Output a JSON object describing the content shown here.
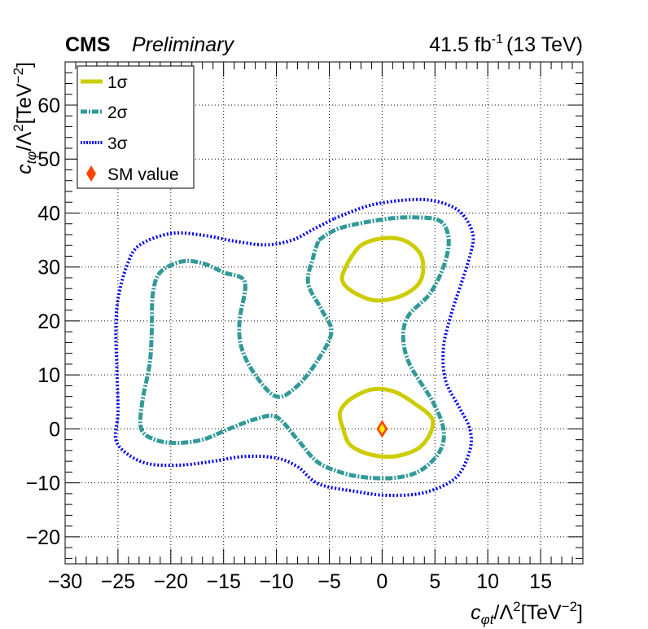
{
  "header": {
    "experiment": "CMS",
    "status": "Preliminary",
    "lumi": "41.5 fb",
    "lumi_exp": "-1",
    "energy": "(13 TeV)"
  },
  "chart_data": {
    "type": "line",
    "xlabel": {
      "var": "c",
      "sub": "φt",
      "rest": "/Λ",
      "sup": "2",
      "unit": "[TeV",
      "unit_sup": "−2",
      "close": "]"
    },
    "ylabel": {
      "var": "c",
      "sub": "tφ",
      "rest": "/Λ",
      "sup": "2",
      "unit": "[TeV",
      "unit_sup": "−2",
      "close": "]"
    },
    "xlim": [
      -30,
      19
    ],
    "ylim": [
      -25,
      68
    ],
    "x_ticks": [
      "−30",
      "−25",
      "−20",
      "−15",
      "−10",
      "−5",
      "0",
      "5",
      "10",
      "15"
    ],
    "x_tick_values": [
      -30,
      -25,
      -20,
      -15,
      -10,
      -5,
      0,
      5,
      10,
      15
    ],
    "y_ticks": [
      "−20",
      "−10",
      "0",
      "10",
      "20",
      "30",
      "40",
      "50",
      "60"
    ],
    "y_tick_values": [
      -20,
      -10,
      0,
      10,
      20,
      30,
      40,
      50,
      60
    ],
    "grid": true,
    "legend_position": "top-left",
    "series": [
      {
        "name": "1σ",
        "color": "#cccc00",
        "style": "solid",
        "contours": [
          [
            [
              -3.2,
              31
            ],
            [
              -3.8,
              28
            ],
            [
              -3.2,
              26
            ],
            [
              -1.5,
              24.2
            ],
            [
              0,
              23.8
            ],
            [
              2,
              24.8
            ],
            [
              3.5,
              27
            ],
            [
              3.9,
              30
            ],
            [
              3.5,
              32.8
            ],
            [
              2,
              35
            ],
            [
              0,
              35.3
            ],
            [
              -2,
              34
            ],
            [
              -3.2,
              31
            ]
          ],
          [
            [
              -3.7,
              0
            ],
            [
              -4,
              3
            ],
            [
              -3,
              5.5
            ],
            [
              -1,
              7.3
            ],
            [
              1,
              7
            ],
            [
              3,
              4.8
            ],
            [
              4.8,
              1.5
            ],
            [
              3.8,
              -3
            ],
            [
              1.5,
              -5
            ],
            [
              -1,
              -4.8
            ],
            [
              -3,
              -3
            ],
            [
              -3.7,
              0
            ]
          ]
        ]
      },
      {
        "name": "2σ",
        "color": "#339999",
        "style": "dashed",
        "contours": [
          [
            [
              -6,
              35
            ],
            [
              -4,
              37.2
            ],
            [
              0,
              38.8
            ],
            [
              3,
              39.2
            ],
            [
              5.5,
              38.5
            ],
            [
              6.3,
              35
            ],
            [
              5.8,
              30
            ],
            [
              4.5,
              25
            ],
            [
              2.5,
              21
            ],
            [
              2,
              17
            ],
            [
              2.6,
              12
            ],
            [
              4.8,
              5
            ],
            [
              5.8,
              0
            ],
            [
              5.5,
              -4
            ],
            [
              3.8,
              -7.5
            ],
            [
              1.5,
              -9
            ],
            [
              -1.5,
              -9
            ],
            [
              -4,
              -8
            ],
            [
              -6.2,
              -6
            ],
            [
              -8,
              -2
            ],
            [
              -10,
              2.2
            ],
            [
              -12,
              1.8
            ],
            [
              -14.5,
              0
            ],
            [
              -17,
              -2
            ],
            [
              -19.5,
              -2.6
            ],
            [
              -21.5,
              -2
            ],
            [
              -22.8,
              0
            ],
            [
              -22.7,
              5
            ],
            [
              -22,
              12
            ],
            [
              -21.8,
              18
            ],
            [
              -21.7,
              25
            ],
            [
              -21,
              29
            ],
            [
              -19,
              31
            ],
            [
              -17,
              30.7
            ],
            [
              -15,
              29
            ],
            [
              -13,
              27.2
            ],
            [
              -13.5,
              20
            ],
            [
              -13.3,
              15
            ],
            [
              -12,
              10
            ],
            [
              -10,
              6
            ],
            [
              -8,
              8
            ],
            [
              -6,
              13
            ],
            [
              -4.8,
              18
            ],
            [
              -5.7,
              22
            ],
            [
              -7,
              27
            ],
            [
              -6.5,
              32
            ],
            [
              -6,
              35
            ]
          ]
        ]
      },
      {
        "name": "3σ",
        "color": "#0000ee",
        "style": "dotted",
        "contours": [
          [
            [
              -4.5,
              39
            ],
            [
              -1,
              41.5
            ],
            [
              3,
              42.5
            ],
            [
              5.5,
              42
            ],
            [
              7.5,
              40
            ],
            [
              8.6,
              36
            ],
            [
              8.3,
              32
            ],
            [
              7.5,
              27
            ],
            [
              6.5,
              21
            ],
            [
              5.8,
              15
            ],
            [
              6,
              9
            ],
            [
              7.3,
              4
            ],
            [
              8.3,
              0
            ],
            [
              8.3,
              -4
            ],
            [
              7,
              -9
            ],
            [
              4,
              -11.8
            ],
            [
              0.5,
              -12.3
            ],
            [
              -2.5,
              -11.6
            ],
            [
              -6,
              -10.2
            ],
            [
              -8,
              -7
            ],
            [
              -10,
              -5.4
            ],
            [
              -13,
              -5.1
            ],
            [
              -16,
              -6
            ],
            [
              -19,
              -6.7
            ],
            [
              -22,
              -6.5
            ],
            [
              -24,
              -4.8
            ],
            [
              -25.2,
              -2
            ],
            [
              -25,
              3
            ],
            [
              -25.1,
              11
            ],
            [
              -25.2,
              18
            ],
            [
              -25,
              24
            ],
            [
              -24.2,
              30
            ],
            [
              -23,
              34
            ],
            [
              -20,
              36.2
            ],
            [
              -17,
              35.9
            ],
            [
              -14,
              34.8
            ],
            [
              -11,
              34.1
            ],
            [
              -8.5,
              35
            ],
            [
              -6.5,
              37
            ],
            [
              -4.5,
              39
            ]
          ]
        ]
      }
    ],
    "sm_point": {
      "name": "SM value",
      "x": 0,
      "y": 0,
      "color": "#ff4400",
      "inner_color": "#ffee00"
    }
  }
}
